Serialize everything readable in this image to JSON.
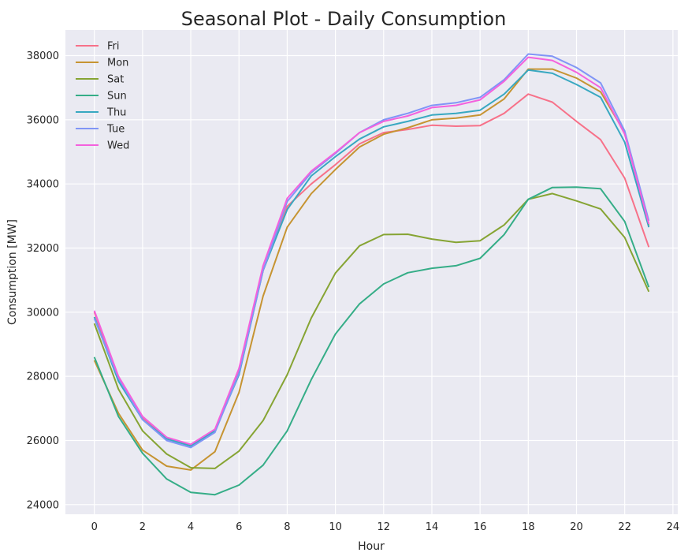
{
  "chart_data": {
    "type": "line",
    "title": "Seasonal Plot - Daily Consumption",
    "xlabel": "Hour",
    "ylabel": "Consumption [MW]",
    "xlim": [
      -1.2,
      24.2
    ],
    "ylim": [
      23700,
      38800
    ],
    "xticks": [
      "0",
      "2",
      "4",
      "6",
      "8",
      "10",
      "12",
      "14",
      "16",
      "18",
      "20",
      "22",
      "24"
    ],
    "yticks": [
      "24000",
      "26000",
      "28000",
      "30000",
      "32000",
      "34000",
      "36000",
      "38000"
    ],
    "grid": true,
    "legend_position": "top-left",
    "x": [
      0,
      1,
      2,
      3,
      4,
      5,
      6,
      7,
      8,
      9,
      10,
      11,
      12,
      13,
      14,
      15,
      16,
      17,
      18,
      19,
      20,
      21,
      22,
      23
    ],
    "series": [
      {
        "name": "Fri",
        "color": "#f77189",
        "values": [
          30000,
          27950,
          26700,
          26080,
          25850,
          26300,
          28150,
          31300,
          33300,
          34000,
          34600,
          35250,
          35600,
          35700,
          35830,
          35800,
          35820,
          36200,
          36800,
          36550,
          35950,
          35380,
          34180,
          32030
        ]
      },
      {
        "name": "Mon",
        "color": "#c69432",
        "values": [
          28500,
          26850,
          25700,
          25200,
          25080,
          25650,
          27500,
          30500,
          32650,
          33700,
          34450,
          35150,
          35550,
          35750,
          36000,
          36050,
          36150,
          36650,
          37580,
          37580,
          37300,
          36870,
          35600,
          32700
        ]
      },
      {
        "name": "Sat",
        "color": "#86a433",
        "values": [
          29650,
          27600,
          26300,
          25580,
          25150,
          25130,
          25670,
          26620,
          28050,
          29820,
          31220,
          32070,
          32420,
          32430,
          32280,
          32180,
          32230,
          32720,
          33520,
          33700,
          33470,
          33220,
          32330,
          30640
        ]
      },
      {
        "name": "Sun",
        "color": "#35ad87",
        "values": [
          28600,
          26750,
          25600,
          24800,
          24380,
          24310,
          24610,
          25230,
          26300,
          27900,
          29320,
          30260,
          30880,
          31230,
          31370,
          31450,
          31680,
          32420,
          33520,
          33890,
          33900,
          33850,
          32830,
          30780
        ]
      },
      {
        "name": "Thu",
        "color": "#38a8c1",
        "values": [
          29850,
          27850,
          26650,
          26050,
          25830,
          26300,
          28050,
          31300,
          33200,
          34250,
          34850,
          35400,
          35780,
          35950,
          36150,
          36200,
          36300,
          36800,
          37550,
          37450,
          37100,
          36700,
          35300,
          32650
        ]
      },
      {
        "name": "Tue",
        "color": "#8195f6",
        "values": [
          29800,
          27950,
          26650,
          26000,
          25780,
          26250,
          28100,
          31300,
          33450,
          34350,
          34950,
          35600,
          36000,
          36200,
          36450,
          36530,
          36700,
          37250,
          38050,
          37980,
          37630,
          37150,
          35650,
          32850
        ]
      },
      {
        "name": "Wed",
        "color": "#f461dd",
        "values": [
          30050,
          28000,
          26750,
          26100,
          25880,
          26350,
          28250,
          31450,
          33550,
          34400,
          34980,
          35600,
          35950,
          36120,
          36380,
          36450,
          36620,
          37200,
          37950,
          37850,
          37480,
          37000,
          35550,
          32750
        ]
      }
    ]
  }
}
